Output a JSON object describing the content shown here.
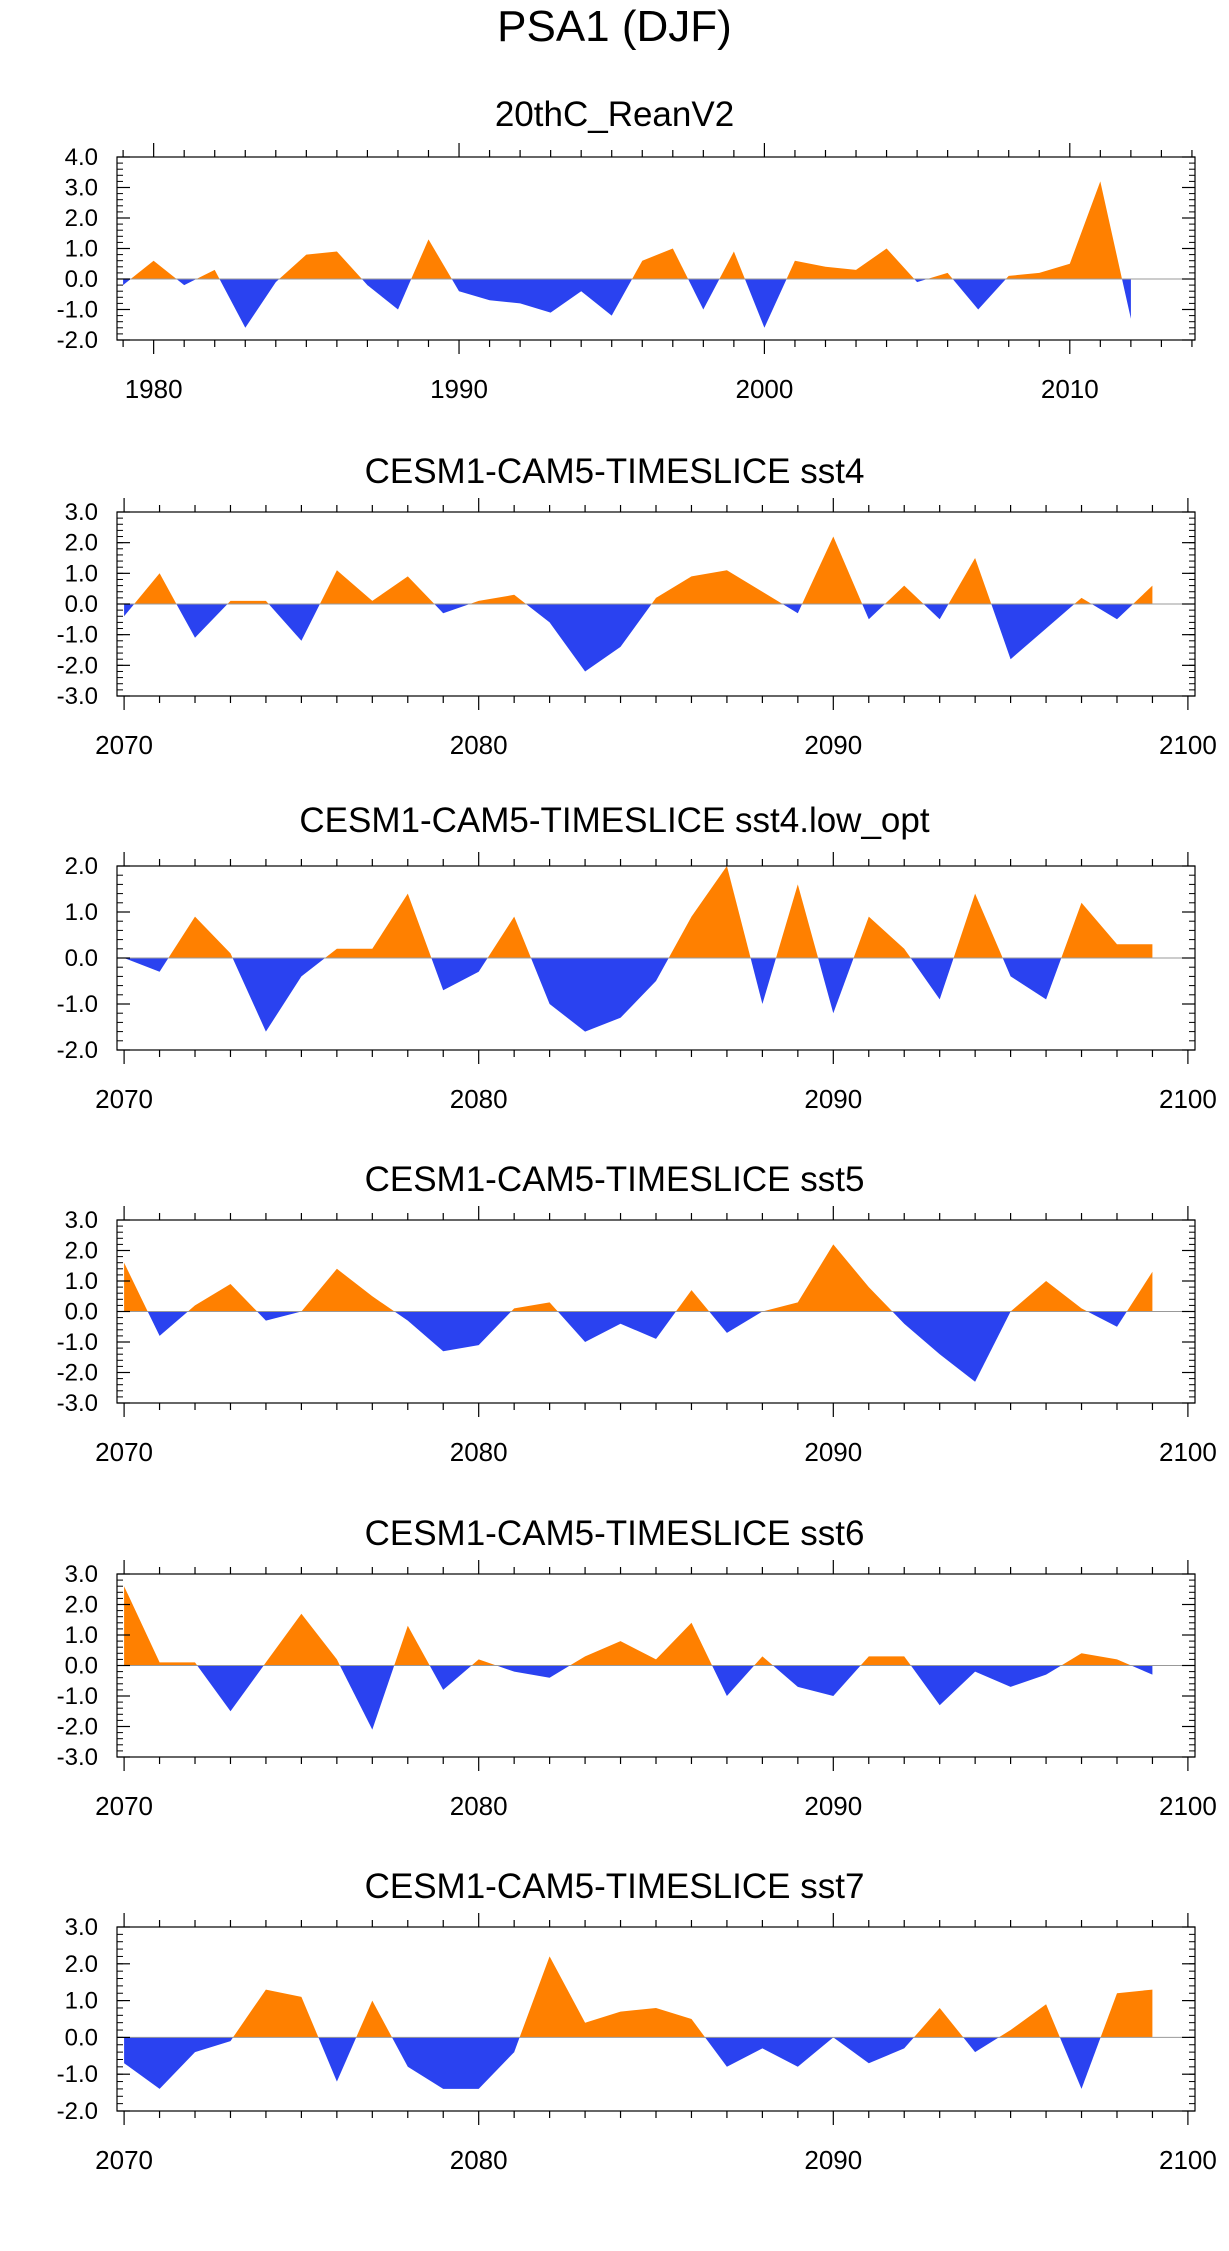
{
  "figure_title": "PSA1 (DJF)",
  "colors": {
    "positive": "#ff8000",
    "negative": "#2a42f0",
    "axis": "#000000",
    "zero_line": "#999999"
  },
  "chart_data": [
    {
      "type": "area",
      "title": "20thC_ReanV2",
      "xlim": [
        1978.8,
        2014.1
      ],
      "ylim": [
        -2.0,
        4.0
      ],
      "yticks": [
        "4.0",
        "3.0",
        "2.0",
        "1.0",
        "0.0",
        "-1.0",
        "-2.0"
      ],
      "ytick_values": [
        4,
        3,
        2,
        1,
        0,
        -1,
        -2
      ],
      "xticks": [
        1980,
        1990,
        2000,
        2010
      ],
      "xtick_labels": [
        "1980",
        "1990",
        "2000",
        "2010"
      ],
      "x": [
        1979,
        1980,
        1981,
        1982,
        1983,
        1984,
        1985,
        1986,
        1987,
        1988,
        1989,
        1990,
        1991,
        1992,
        1993,
        1994,
        1995,
        1996,
        1997,
        1998,
        1999,
        2000,
        2001,
        2002,
        2003,
        2004,
        2005,
        2006,
        2007,
        2008,
        2009,
        2010,
        2011,
        2012
      ],
      "values": [
        -0.2,
        0.6,
        -0.2,
        0.3,
        -1.6,
        -0.1,
        0.8,
        0.9,
        -0.2,
        -1.0,
        1.3,
        -0.4,
        -0.7,
        -0.8,
        -1.1,
        -0.4,
        -1.2,
        0.6,
        1.0,
        -1.0,
        0.9,
        -1.6,
        0.6,
        0.4,
        0.3,
        1.0,
        -0.1,
        0.2,
        -1.0,
        0.1,
        0.2,
        0.5,
        3.2,
        -1.3
      ]
    },
    {
      "type": "area",
      "title": "CESM1-CAM5-TIMESLICE sst4",
      "xlim": [
        2069.8,
        2100.2
      ],
      "ylim": [
        -3.0,
        3.0
      ],
      "yticks": [
        "3.0",
        "2.0",
        "1.0",
        "0.0",
        "-1.0",
        "-2.0",
        "-3.0"
      ],
      "ytick_values": [
        3,
        2,
        1,
        0,
        -1,
        -2,
        -3
      ],
      "xticks": [
        2070,
        2080,
        2090,
        2100
      ],
      "xtick_labels": [
        "2070",
        "2080",
        "2090",
        "2100"
      ],
      "x": [
        2070,
        2071,
        2072,
        2073,
        2074,
        2075,
        2076,
        2077,
        2078,
        2079,
        2080,
        2081,
        2082,
        2083,
        2084,
        2085,
        2086,
        2087,
        2088,
        2089,
        2090,
        2091,
        2092,
        2093,
        2094,
        2095,
        2096,
        2097,
        2098,
        2099
      ],
      "values": [
        -0.4,
        1.0,
        -1.1,
        0.1,
        0.1,
        -1.2,
        1.1,
        0.1,
        0.9,
        -0.3,
        0.1,
        0.3,
        -0.6,
        -2.2,
        -1.4,
        0.2,
        0.9,
        1.1,
        0.4,
        -0.3,
        2.2,
        -0.5,
        0.6,
        -0.5,
        1.5,
        -1.8,
        -0.8,
        0.2,
        -0.5,
        0.6
      ]
    },
    {
      "type": "area",
      "title": "CESM1-CAM5-TIMESLICE sst4.low_opt",
      "xlim": [
        2069.8,
        2100.2
      ],
      "ylim": [
        -2.0,
        2.0
      ],
      "yticks": [
        "2.0",
        "1.0",
        "0.0",
        "-1.0",
        "-2.0"
      ],
      "ytick_values": [
        2,
        1,
        0,
        -1,
        -2
      ],
      "xticks": [
        2070,
        2080,
        2090,
        2100
      ],
      "xtick_labels": [
        "2070",
        "2080",
        "2090",
        "2100"
      ],
      "x": [
        2070,
        2071,
        2072,
        2073,
        2074,
        2075,
        2076,
        2077,
        2078,
        2079,
        2080,
        2081,
        2082,
        2083,
        2084,
        2085,
        2086,
        2087,
        2088,
        2089,
        2090,
        2091,
        2092,
        2093,
        2094,
        2095,
        2096,
        2097,
        2098,
        2099
      ],
      "values": [
        0.0,
        -0.3,
        0.9,
        0.1,
        -1.6,
        -0.4,
        0.2,
        0.2,
        1.4,
        -0.7,
        -0.3,
        0.9,
        -1.0,
        -1.6,
        -1.3,
        -0.5,
        0.9,
        2.0,
        -1.0,
        1.6,
        -1.2,
        0.9,
        0.2,
        -0.9,
        1.4,
        -0.4,
        -0.9,
        1.2,
        0.3,
        0.3
      ]
    },
    {
      "type": "area",
      "title": "CESM1-CAM5-TIMESLICE sst5",
      "xlim": [
        2069.8,
        2100.2
      ],
      "ylim": [
        -3.0,
        3.0
      ],
      "yticks": [
        "3.0",
        "2.0",
        "1.0",
        "0.0",
        "-1.0",
        "-2.0",
        "-3.0"
      ],
      "ytick_values": [
        3,
        2,
        1,
        0,
        -1,
        -2,
        -3
      ],
      "xticks": [
        2070,
        2080,
        2090,
        2100
      ],
      "xtick_labels": [
        "2070",
        "2080",
        "2090",
        "2100"
      ],
      "x": [
        2070,
        2071,
        2072,
        2073,
        2074,
        2075,
        2076,
        2077,
        2078,
        2079,
        2080,
        2081,
        2082,
        2083,
        2084,
        2085,
        2086,
        2087,
        2088,
        2089,
        2090,
        2091,
        2092,
        2093,
        2094,
        2095,
        2096,
        2097,
        2098,
        2099
      ],
      "values": [
        1.6,
        -0.8,
        0.2,
        0.9,
        -0.3,
        0.0,
        1.4,
        0.5,
        -0.3,
        -1.3,
        -1.1,
        0.1,
        0.3,
        -1.0,
        -0.4,
        -0.9,
        0.7,
        -0.7,
        0.0,
        0.3,
        2.2,
        0.8,
        -0.4,
        -1.4,
        -2.3,
        0.0,
        1.0,
        0.1,
        -0.5,
        1.3
      ]
    },
    {
      "type": "area",
      "title": "CESM1-CAM5-TIMESLICE sst6",
      "xlim": [
        2069.8,
        2100.2
      ],
      "ylim": [
        -3.0,
        3.0
      ],
      "yticks": [
        "3.0",
        "2.0",
        "1.0",
        "0.0",
        "-1.0",
        "-2.0",
        "-3.0"
      ],
      "ytick_values": [
        3,
        2,
        1,
        0,
        -1,
        -2,
        -3
      ],
      "xticks": [
        2070,
        2080,
        2090,
        2100
      ],
      "xtick_labels": [
        "2070",
        "2080",
        "2090",
        "2100"
      ],
      "x": [
        2070,
        2071,
        2072,
        2073,
        2074,
        2075,
        2076,
        2077,
        2078,
        2079,
        2080,
        2081,
        2082,
        2083,
        2084,
        2085,
        2086,
        2087,
        2088,
        2089,
        2090,
        2091,
        2092,
        2093,
        2094,
        2095,
        2096,
        2097,
        2098,
        2099
      ],
      "values": [
        2.6,
        0.1,
        0.1,
        -1.5,
        0.1,
        1.7,
        0.2,
        -2.1,
        1.3,
        -0.8,
        0.2,
        -0.2,
        -0.4,
        0.3,
        0.8,
        0.2,
        1.4,
        -1.0,
        0.3,
        -0.7,
        -1.0,
        0.3,
        0.3,
        -1.3,
        -0.2,
        -0.7,
        -0.3,
        0.4,
        0.2,
        -0.3
      ]
    },
    {
      "type": "area",
      "title": "CESM1-CAM5-TIMESLICE sst7",
      "xlim": [
        2069.8,
        2100.2
      ],
      "ylim": [
        -2.0,
        3.0
      ],
      "yticks": [
        "3.0",
        "2.0",
        "1.0",
        "0.0",
        "-1.0",
        "-2.0"
      ],
      "ytick_values": [
        3,
        2,
        1,
        0,
        -1,
        -2
      ],
      "xticks": [
        2070,
        2080,
        2090,
        2100
      ],
      "xtick_labels": [
        "2070",
        "2080",
        "2090",
        "2100"
      ],
      "x": [
        2070,
        2071,
        2072,
        2073,
        2074,
        2075,
        2076,
        2077,
        2078,
        2079,
        2080,
        2081,
        2082,
        2083,
        2084,
        2085,
        2086,
        2087,
        2088,
        2089,
        2090,
        2091,
        2092,
        2093,
        2094,
        2095,
        2096,
        2097,
        2098,
        2099
      ],
      "values": [
        -0.7,
        -1.4,
        -0.4,
        -0.1,
        1.3,
        1.1,
        -1.2,
        1.0,
        -0.8,
        -1.4,
        -1.4,
        -0.4,
        2.2,
        0.4,
        0.7,
        0.8,
        0.5,
        -0.8,
        -0.3,
        -0.8,
        0.0,
        -0.7,
        -0.3,
        0.8,
        -0.4,
        0.2,
        0.9,
        -1.4,
        1.2,
        1.3
      ]
    }
  ]
}
